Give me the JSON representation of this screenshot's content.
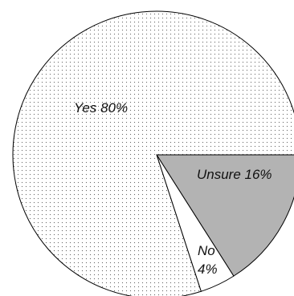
{
  "chart_data": {
    "type": "pie",
    "slices": [
      {
        "label": "Yes",
        "value": 80,
        "text": "Yes 80%",
        "fill": "dots"
      },
      {
        "label": "Unsure",
        "value": 16,
        "text": "Unsure 16%",
        "fill": "#b3b3b3"
      },
      {
        "label": "No",
        "value": 4,
        "text_lines": [
          "No",
          "4%"
        ],
        "fill": "#ffffff"
      }
    ]
  }
}
